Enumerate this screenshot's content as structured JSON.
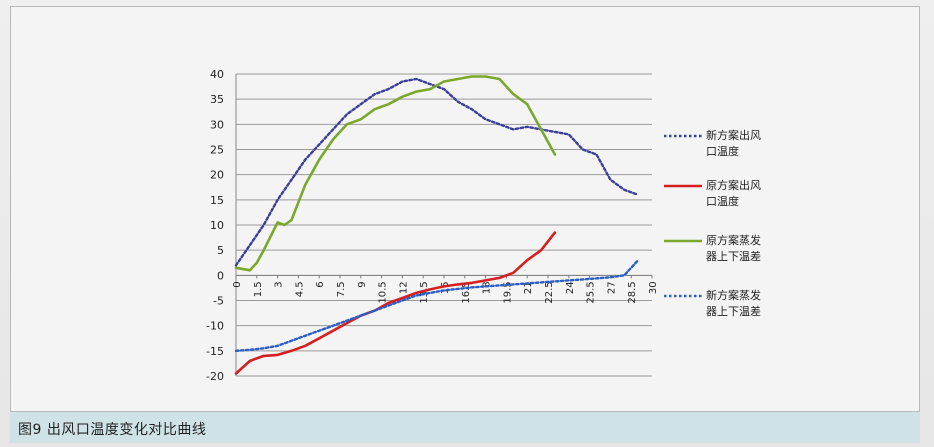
{
  "caption": "图9 出风口温度变化对比曲线",
  "chart_data": {
    "type": "line",
    "title": "",
    "xlabel": "",
    "ylabel": "",
    "ylim": [
      -20,
      40
    ],
    "yticks": [
      40,
      35,
      30,
      25,
      20,
      15,
      10,
      5,
      0,
      -5,
      -10,
      -15,
      -20
    ],
    "xlim": [
      0,
      30
    ],
    "xticks": [
      "0",
      "1.5",
      "3",
      "4.5",
      "6",
      "7.5",
      "9",
      "10.5",
      "12",
      "13.5",
      "15",
      "16.5",
      "18",
      "19.5",
      "21",
      "22.5",
      "24",
      "25.5",
      "27",
      "28.5",
      "30"
    ],
    "grid": "horizontal",
    "legend_position": "right",
    "series": [
      {
        "name": "新方案出风口温度",
        "color": "#3b3f99",
        "style": "dotted",
        "x": [
          0,
          1,
          2,
          3,
          4,
          5,
          6,
          7,
          8,
          9,
          10,
          11,
          12,
          13,
          14,
          15,
          16,
          17,
          18,
          19,
          20,
          21,
          22,
          23,
          24,
          25,
          26,
          27,
          28,
          29
        ],
        "y": [
          2,
          6,
          10,
          15,
          19,
          23,
          26,
          29,
          32,
          34,
          36,
          37,
          38.5,
          39,
          38,
          37,
          34.5,
          33,
          31,
          30,
          29,
          29.5,
          29,
          28.5,
          28,
          25,
          24,
          19,
          17,
          16
        ]
      },
      {
        "name": "原方案出风口温度",
        "color": "#d62020",
        "style": "solid",
        "x": [
          0,
          1,
          2,
          3,
          4,
          5,
          6,
          7,
          8,
          9,
          10,
          11,
          12,
          13,
          14,
          15,
          16,
          17,
          18,
          19,
          20,
          21,
          22,
          23
        ],
        "y": [
          -19.5,
          -17,
          -16,
          -15.8,
          -15,
          -14,
          -12.5,
          -11,
          -9.5,
          -8,
          -7,
          -5.5,
          -4.5,
          -3.5,
          -2.8,
          -2.2,
          -1.8,
          -1.5,
          -1,
          -0.5,
          0.5,
          3,
          5,
          8.5
        ]
      },
      {
        "name": "原方案蒸发器上下温差",
        "color": "#7aa82c",
        "style": "solid",
        "x": [
          0,
          1,
          1.5,
          2,
          3,
          3.5,
          4,
          5,
          6,
          7,
          8,
          9,
          10,
          11,
          12,
          13,
          14,
          15,
          16,
          17,
          18,
          19,
          20,
          21,
          22,
          23
        ],
        "y": [
          1.5,
          1,
          2.5,
          5,
          10.5,
          10,
          11,
          18,
          23,
          27,
          30,
          31,
          33,
          34,
          35.5,
          36.5,
          37,
          38.5,
          39,
          39.5,
          39.5,
          39,
          36,
          34,
          29,
          24
        ]
      },
      {
        "name": "新方案蒸发器上下温差",
        "color": "#2a5fc6",
        "style": "dotted",
        "x": [
          0,
          1,
          2,
          3,
          4,
          5,
          6,
          7,
          8,
          9,
          10,
          11,
          12,
          13,
          14,
          15,
          16,
          17,
          18,
          19,
          20,
          21,
          22,
          23,
          24,
          25,
          26,
          27,
          28,
          29
        ],
        "y": [
          -15,
          -14.8,
          -14.5,
          -14,
          -13,
          -12,
          -11,
          -10,
          -9,
          -8,
          -7,
          -6,
          -5,
          -4,
          -3.5,
          -3,
          -2.7,
          -2.4,
          -2.2,
          -2,
          -1.8,
          -1.6,
          -1.4,
          -1.2,
          -1,
          -0.8,
          -0.6,
          -0.4,
          0,
          3
        ]
      }
    ]
  }
}
